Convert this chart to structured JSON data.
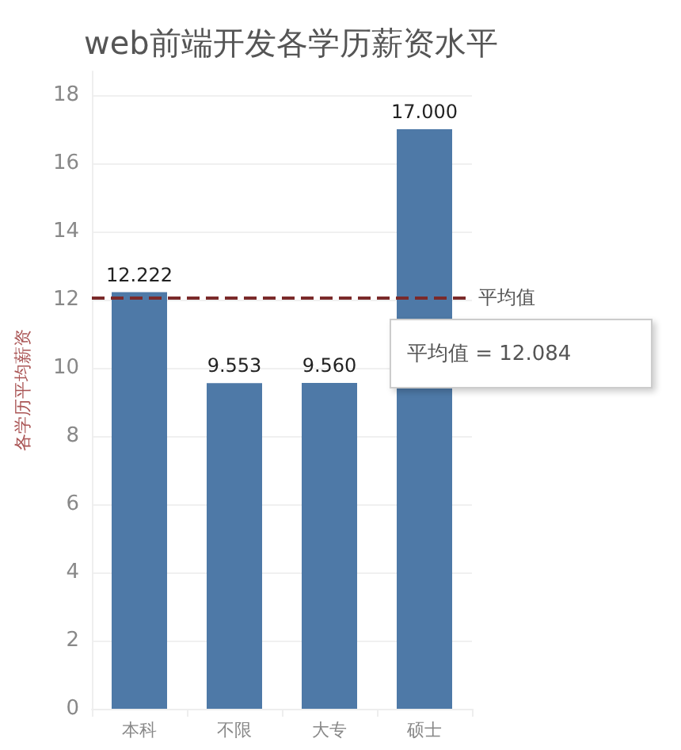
{
  "chart_data": {
    "type": "bar",
    "title": "web前端开发各学历薪资水平",
    "ylabel": "各学历平均薪资",
    "categories": [
      "本科",
      "不限",
      "大专",
      "硕士"
    ],
    "values": [
      12.222,
      9.553,
      9.56,
      17.0
    ],
    "color": "#4e79a7",
    "value_labels": [
      "12.222",
      "9.553",
      "9.560",
      "17.000"
    ],
    "ylim": [
      0,
      18.7
    ],
    "yticks": [
      0,
      2,
      4,
      6,
      8,
      10,
      12,
      14,
      16,
      18
    ],
    "grid": "y",
    "ref_lines": [
      {
        "axis": "y",
        "value": 12.084,
        "label": "平均值",
        "color": "#7b2a2a",
        "line_style": "dashed"
      }
    ],
    "annotations": [
      "平均值 = 12.084"
    ]
  }
}
